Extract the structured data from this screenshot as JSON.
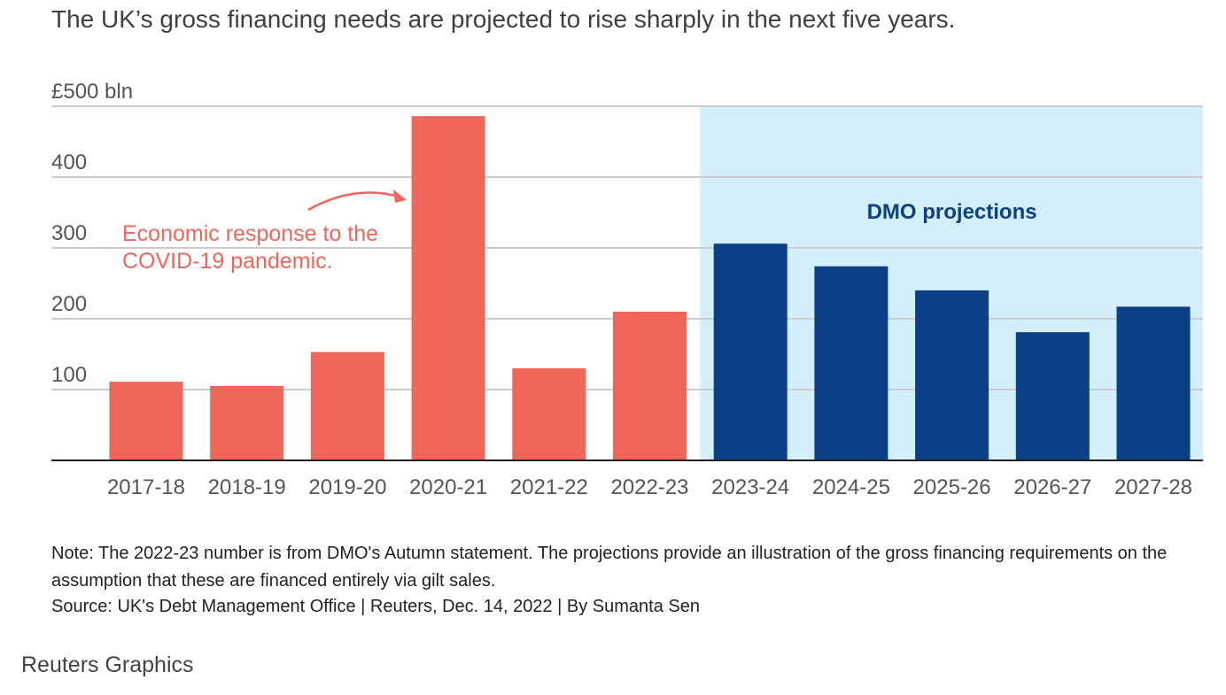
{
  "subtitle": "The UK’s gross financing needs are projected to rise sharply in the next five years.",
  "note": "Note: The 2022-23 number is from DMO's Autumn statement. The projections provide an illustration of the gross financing requirements on the assumption that these are financed entirely via gilt sales.",
  "source": "Source: UK's Debt Management Office | Reuters, Dec. 14, 2022 | By Sumanta Sen",
  "brand": "Reuters Graphics",
  "colors": {
    "actual": "#f0655a",
    "projection": "#0b3f86",
    "projection_band": "#d3effc",
    "annotation": "#f0655a",
    "grid": "#cccccc",
    "axis": "#222222"
  },
  "chart_data": {
    "type": "bar",
    "categories": [
      "2017-18",
      "2018-19",
      "2019-20",
      "2020-21",
      "2021-22",
      "2022-23",
      "2023-24",
      "2024-25",
      "2025-26",
      "2026-27",
      "2027-28"
    ],
    "values": [
      111,
      105,
      153,
      486,
      130,
      210,
      306,
      274,
      240,
      181,
      217
    ],
    "projected": [
      false,
      false,
      false,
      false,
      false,
      false,
      true,
      true,
      true,
      true,
      true
    ],
    "ylim": [
      0,
      500
    ],
    "yticks": [
      100,
      200,
      300,
      400,
      500
    ],
    "ytick_labels": [
      "100",
      "200",
      "300",
      "400",
      "£500 bln"
    ],
    "grid": true,
    "annotations": [
      {
        "text_lines": [
          "Economic response to the",
          "COVID-19 pandemic."
        ],
        "target": "2020-21"
      },
      {
        "text": "DMO projections",
        "region": [
          "2023-24",
          "2027-28"
        ]
      }
    ]
  }
}
